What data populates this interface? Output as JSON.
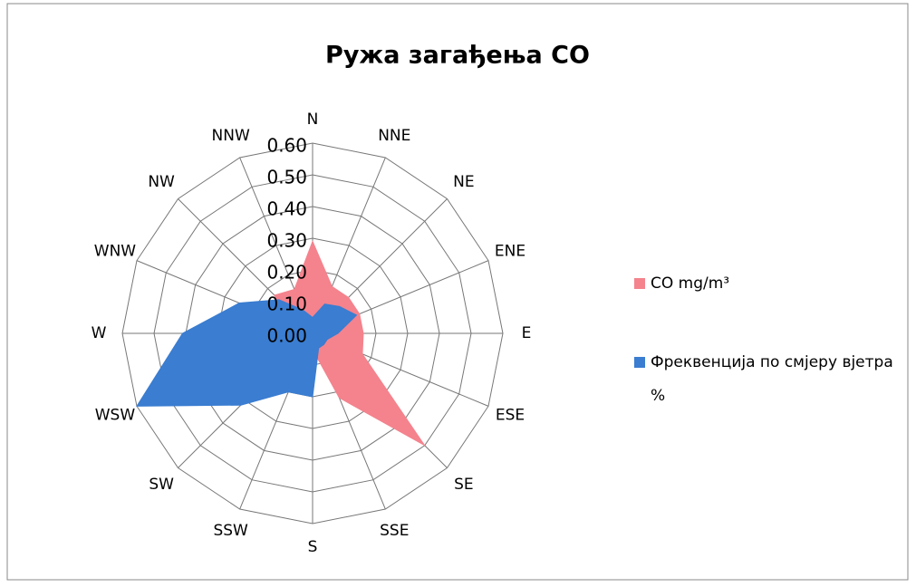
{
  "chart_data": {
    "type": "radar",
    "title": "Ружа загађења CO",
    "categories": [
      "N",
      "NNE",
      "NE",
      "ENE",
      "E",
      "ESE",
      "SE",
      "SSE",
      "S",
      "SSW",
      "SW",
      "WSW",
      "W",
      "WNW",
      "NW",
      "NNW"
    ],
    "series": [
      {
        "name": "CO mg/m³",
        "color": "#f4838d",
        "values": [
          0.29,
          0.16,
          0.16,
          0.16,
          0.16,
          0.17,
          0.5,
          0.22,
          0.05,
          0.05,
          0.05,
          0.05,
          0.05,
          0.08,
          0.17,
          0.15
        ]
      },
      {
        "name": "Фреквенција по смјеру вјетра %",
        "color": "#3a7dd1",
        "values": [
          0.05,
          0.1,
          0.12,
          0.15,
          0.08,
          0.05,
          0.05,
          0.05,
          0.2,
          0.2,
          0.32,
          0.6,
          0.41,
          0.25,
          0.15,
          0.08
        ]
      }
    ],
    "ylim": [
      0,
      0.6
    ],
    "yticks": [
      {
        "value": 0,
        "label": "0.00"
      },
      {
        "value": 0.1,
        "label": "0.10"
      },
      {
        "value": 0.2,
        "label": "0.20"
      },
      {
        "value": 0.3,
        "label": "0.30"
      },
      {
        "value": 0.4,
        "label": "0.40"
      },
      {
        "value": 0.5,
        "label": "0.50"
      },
      {
        "value": 0.6,
        "label": "0.60"
      }
    ],
    "grid": true,
    "legend": "right"
  }
}
